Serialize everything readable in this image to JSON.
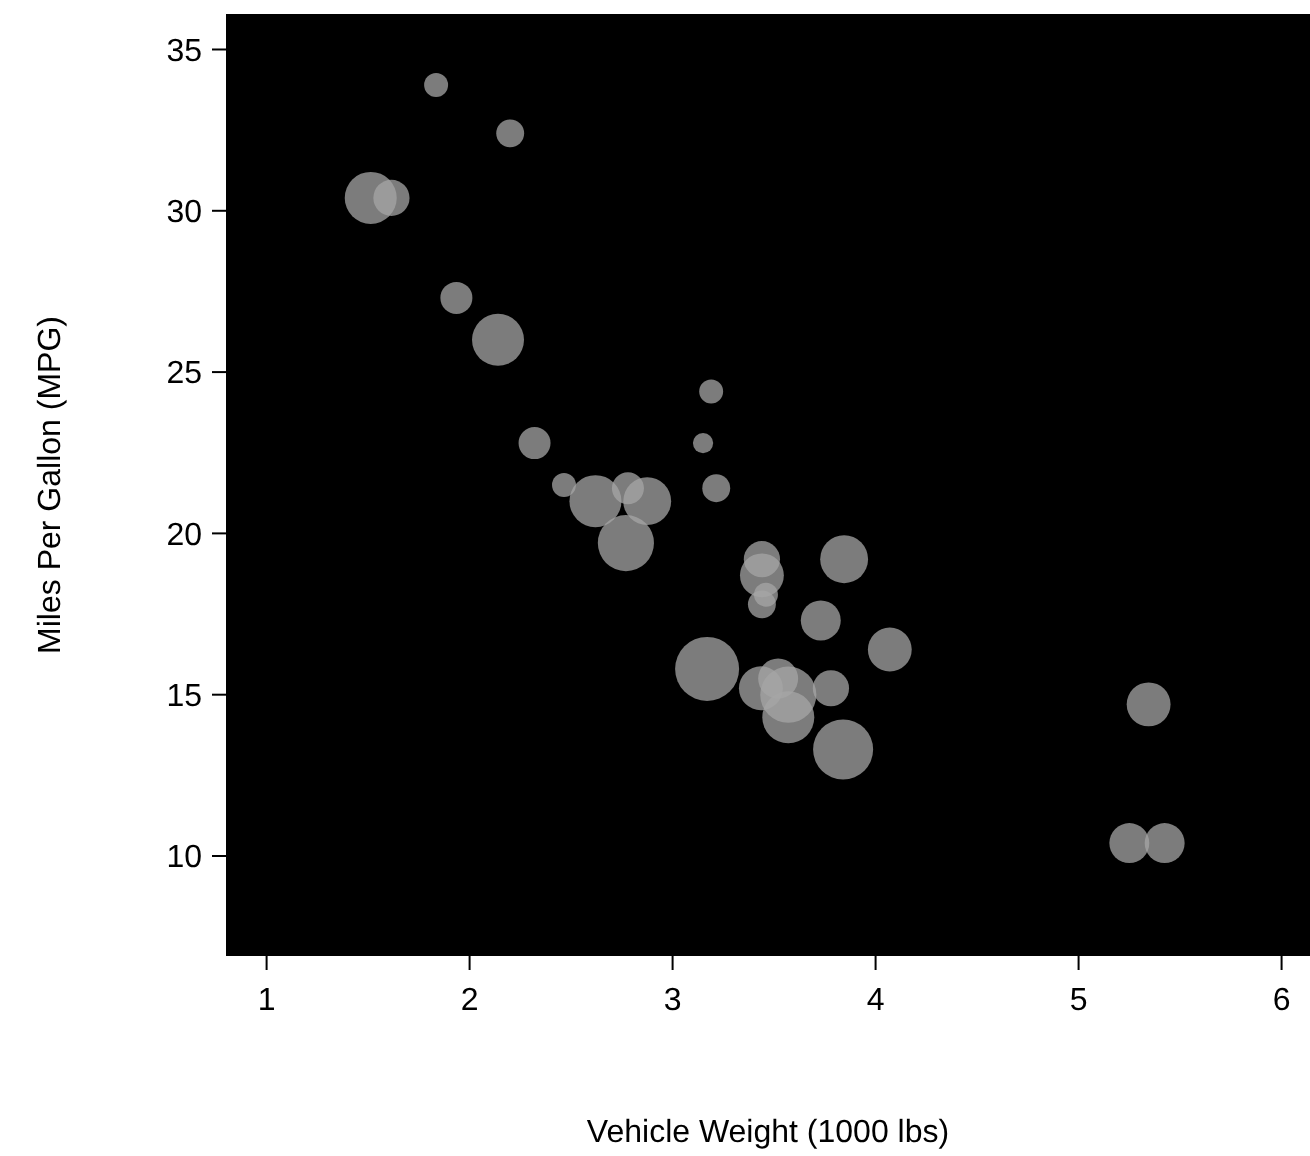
{
  "chart_data": {
    "type": "bubble",
    "xlabel": "Vehicle Weight (1000 lbs)",
    "ylabel": "Miles Per Gallon (MPG)",
    "xlim": [
      0.8,
      6.14
    ],
    "ylim": [
      6.9,
      36.1
    ],
    "xticks": [
      1,
      2,
      3,
      4,
      5,
      6
    ],
    "yticks": [
      10,
      15,
      20,
      25,
      30,
      35
    ],
    "grid": false,
    "series": [
      {
        "color": "#a6a6a6",
        "x": [
          2.62,
          2.875,
          2.32,
          3.215,
          3.44,
          3.46,
          3.57,
          3.19,
          3.15,
          3.44,
          3.44,
          4.07,
          3.73,
          3.78,
          5.25,
          5.424,
          5.345,
          2.2,
          1.615,
          1.835,
          2.465,
          3.52,
          3.435,
          3.84,
          3.845,
          1.935,
          2.14,
          1.513,
          3.17,
          2.77,
          3.57,
          2.78
        ],
        "values": [
          21.0,
          21.0,
          22.8,
          21.4,
          18.7,
          18.1,
          14.3,
          24.4,
          22.8,
          19.2,
          17.8,
          16.4,
          17.3,
          15.2,
          10.4,
          10.4,
          14.7,
          32.4,
          30.4,
          33.9,
          21.5,
          15.5,
          15.2,
          13.3,
          19.2,
          27.3,
          26.0,
          30.4,
          15.8,
          19.7,
          15.0,
          21.4
        ],
        "sizes": [
          0.66,
          0.56,
          0.25,
          0.19,
          0.47,
          0.14,
          0.66,
          0.14,
          0.1,
          0.32,
          0.19,
          0.47,
          0.39,
          0.32,
          0.39,
          0.39,
          0.47,
          0.19,
          0.32,
          0.14,
          0.14,
          0.39,
          0.47,
          0.88,
          0.56,
          0.25,
          0.66,
          0.66,
          1,
          0.77,
          0.77,
          0.25
        ]
      }
    ]
  }
}
